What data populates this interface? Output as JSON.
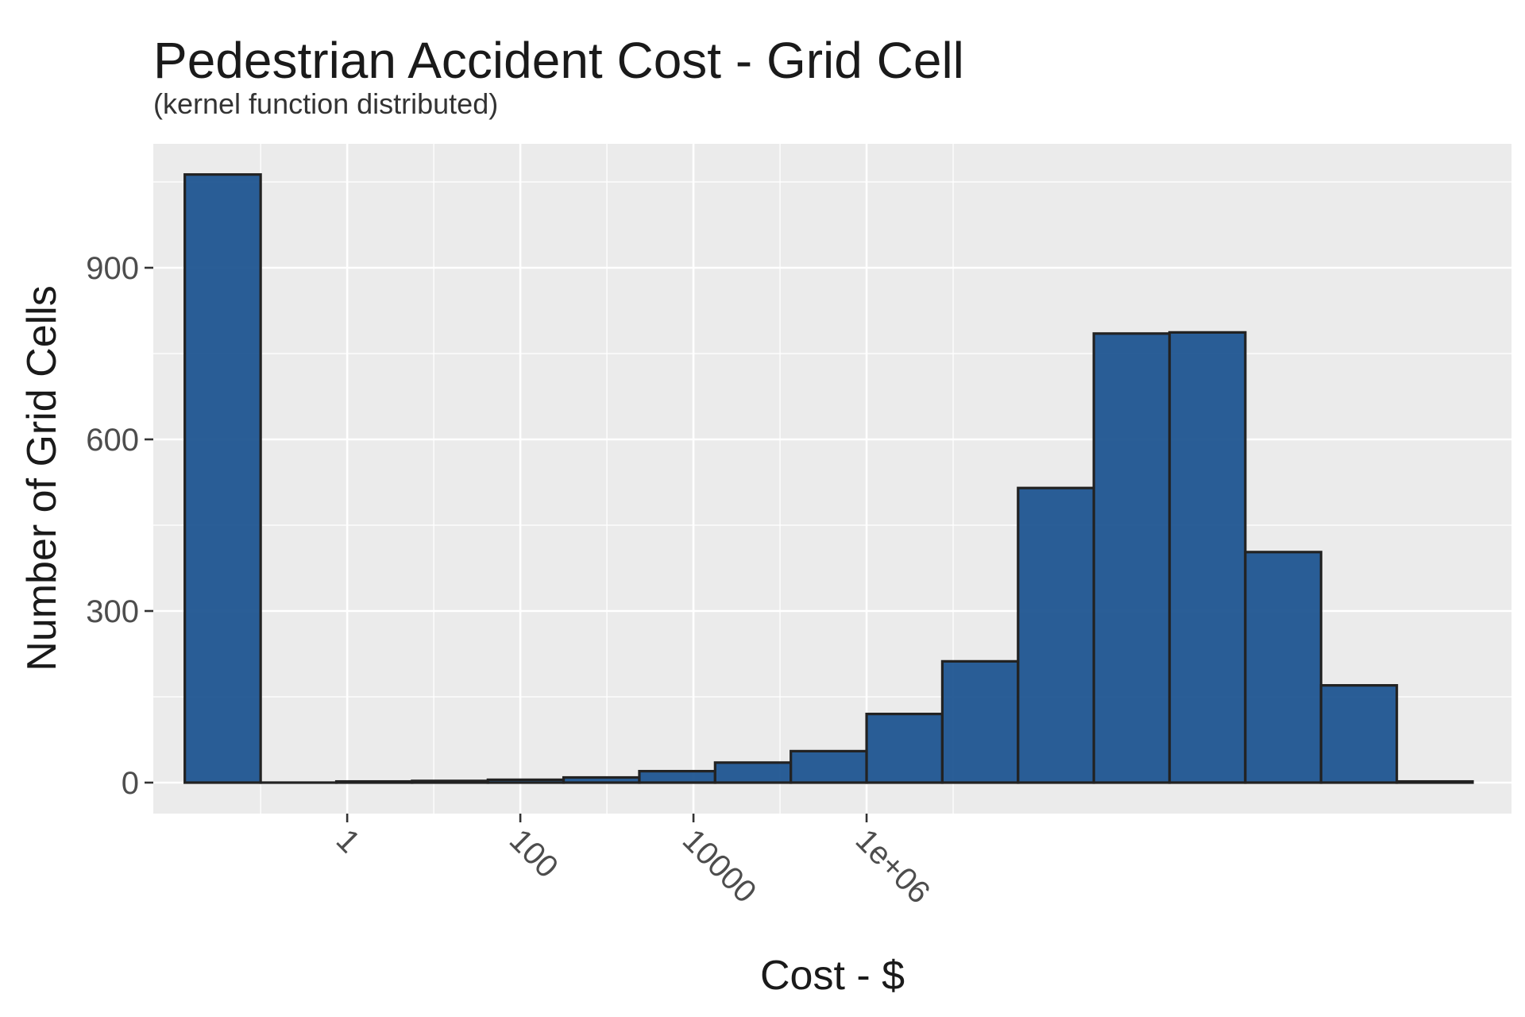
{
  "colors": {
    "panel_background": "#EBEBEB",
    "grid_major": "#FFFFFF",
    "bar_fill": "#1F5591",
    "bar_outline": "#222222",
    "tick_mark": "#333333"
  },
  "chart_data": {
    "type": "bar",
    "subtype": "histogram",
    "title": "Pedestrian Accident Cost - Grid Cell",
    "subtitle": "(kernel function distributed)",
    "xlabel": "Cost - $",
    "ylabel": "Number of Grid Cells",
    "x_scale": "log10",
    "x_ticks": [
      1,
      100,
      10000,
      1000000
    ],
    "x_tick_labels": [
      "1",
      "100",
      "10000",
      "1e+06"
    ],
    "y_ticks": [
      0,
      300,
      600,
      900
    ],
    "y_tick_labels": [
      "0",
      "300",
      "600",
      "900"
    ],
    "ylim": [
      0,
      1060
    ],
    "grid": true,
    "legend": "none",
    "bins": [
      {
        "x_min": 0.0133,
        "x_max": 0.1,
        "count": 1063
      },
      {
        "x_min": 0.1,
        "x_max": 0.75,
        "count": 0
      },
      {
        "x_min": 0.75,
        "x_max": 5.62,
        "count": 2
      },
      {
        "x_min": 5.62,
        "x_max": 42.2,
        "count": 3
      },
      {
        "x_min": 42.2,
        "x_max": 316,
        "count": 5
      },
      {
        "x_min": 316,
        "x_max": 2371,
        "count": 9
      },
      {
        "x_min": 2371,
        "x_max": 17783,
        "count": 20
      },
      {
        "x_min": 17783,
        "x_max": 133352,
        "count": 35
      },
      {
        "x_min": 133352,
        "x_max": 1000000,
        "count": 55
      },
      {
        "x_min": 1000000,
        "x_max": 7498942,
        "count": 120
      },
      {
        "x_min": 7498942,
        "x_max": 56234133,
        "count": 212
      },
      {
        "x_min": 56234133,
        "x_max": 421696503,
        "count": 515
      },
      {
        "x_min": 421696503,
        "x_max": 3162277660,
        "count": 785
      },
      {
        "x_min": 3162277660,
        "x_max": 23713737057,
        "count": 787
      },
      {
        "x_min": 23713737057,
        "x_max": 177827941004,
        "count": 403
      },
      {
        "x_min": 177827941004,
        "x_max": 1333521432163,
        "count": 170
      },
      {
        "x_min": 1333521432163,
        "x_max": 10000000000000,
        "count": 2
      }
    ]
  }
}
